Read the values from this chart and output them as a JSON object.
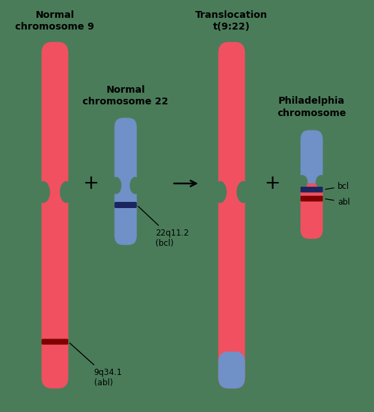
{
  "background_color": "#4a7c59",
  "red_color": "#f05060",
  "blue_color": "#7090c8",
  "dark_red": "#800000",
  "dark_blue": "#1a2560",
  "title_left": "Normal\nchromosome 9",
  "title_chr22": "Normal\nchromosome 22",
  "title_right": "Translocation\nt(9:22)",
  "title_phil": "Philadelphia\nchromosome",
  "label_abl": "9q34.1\n(abl)",
  "label_bcl": "22q11.2\n(bcl)",
  "label_bcl_right": "bcl",
  "label_abl_right": "abl"
}
